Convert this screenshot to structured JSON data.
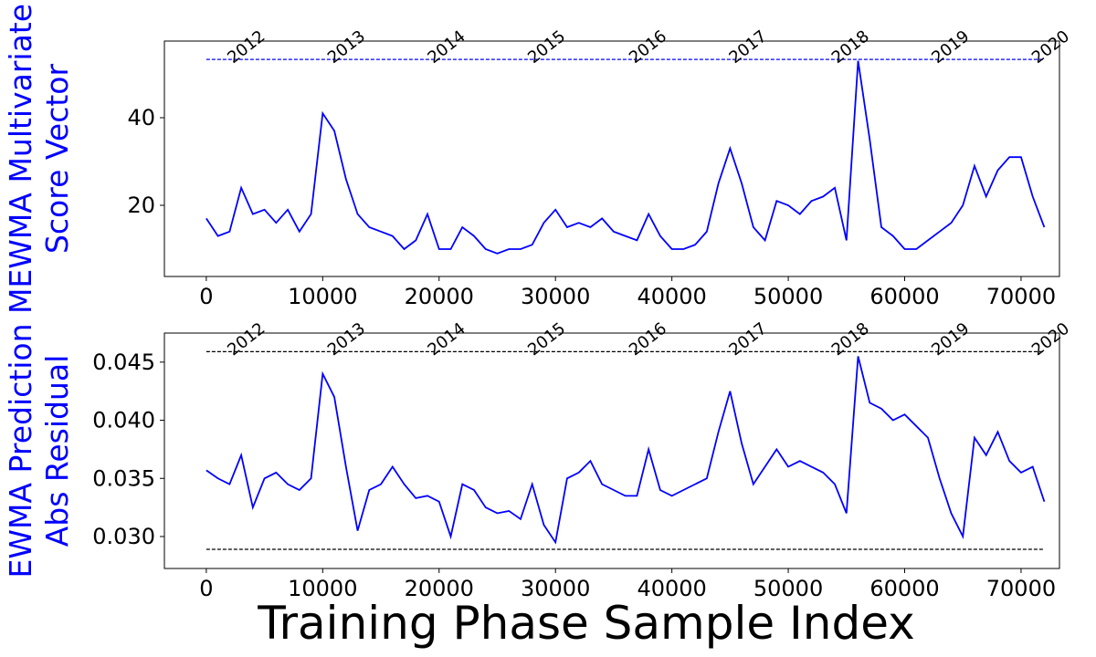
{
  "chart_data": [
    {
      "type": "line",
      "ylabel": [
        "MEWMA Multivariate",
        "Score Vector"
      ],
      "ylabel_color": "#0000ff",
      "xlim": [
        -3600,
        73300
      ],
      "ylim": [
        3.75,
        57.5
      ],
      "xticks": [
        0,
        10000,
        20000,
        30000,
        40000,
        50000,
        60000,
        70000
      ],
      "yticks": [
        20,
        40
      ],
      "hlines": [
        {
          "value": 53.3,
          "color": "#0000ff"
        }
      ],
      "annotations": [
        {
          "text": "2012",
          "x": 2300
        },
        {
          "text": "2013",
          "x": 10900
        },
        {
          "text": "2014",
          "x": 19500
        },
        {
          "text": "2015",
          "x": 28100
        },
        {
          "text": "2016",
          "x": 36800
        },
        {
          "text": "2017",
          "x": 45400
        },
        {
          "text": "2018",
          "x": 54200
        },
        {
          "text": "2019",
          "x": 62800
        },
        {
          "text": "2020",
          "x": 71400
        }
      ],
      "x": [
        0,
        1000,
        2000,
        3000,
        4000,
        5000,
        6000,
        7000,
        8000,
        9000,
        10000,
        11000,
        12000,
        13000,
        14000,
        15000,
        16000,
        17000,
        18000,
        19000,
        20000,
        21000,
        22000,
        23000,
        24000,
        25000,
        26000,
        27000,
        28000,
        29000,
        30000,
        31000,
        32000,
        33000,
        34000,
        35000,
        36000,
        37000,
        38000,
        39000,
        40000,
        41000,
        42000,
        43000,
        44000,
        45000,
        46000,
        47000,
        48000,
        49000,
        50000,
        51000,
        52000,
        53000,
        54000,
        55000,
        56000,
        57000,
        58000,
        59000,
        60000,
        61000,
        62000,
        63000,
        64000,
        65000,
        66000,
        67000,
        68000,
        69000,
        70000,
        71000,
        72000
      ],
      "series": [
        {
          "color": "#0000ff",
          "values": [
            17,
            13,
            14,
            24,
            18,
            19,
            16,
            19,
            14,
            18,
            41,
            37,
            26,
            18,
            15,
            14,
            13,
            10,
            12,
            18,
            10,
            10,
            15,
            13,
            10,
            9,
            10,
            10,
            11,
            16,
            19,
            15,
            16,
            15,
            17,
            14,
            13,
            12,
            18,
            13,
            10,
            10,
            11,
            14,
            25,
            33,
            25,
            15,
            12,
            21,
            20,
            18,
            21,
            22,
            24,
            12,
            53,
            35,
            15,
            13,
            10,
            10,
            12,
            14,
            16,
            20,
            29,
            22,
            28,
            31,
            31,
            22,
            15
          ]
        }
      ]
    },
    {
      "type": "line",
      "ylabel": [
        "EWMA Prediction",
        "Abs Residual"
      ],
      "ylabel_color": "#0000ff",
      "xlabel": "Training Phase Sample Index",
      "xlim": [
        -3600,
        73300
      ],
      "ylim": [
        0.02725,
        0.0475
      ],
      "xticks": [
        0,
        10000,
        20000,
        30000,
        40000,
        50000,
        60000,
        70000
      ],
      "yticks": [
        {
          "value": 0.03,
          "label": "0.030"
        },
        0.035,
        {
          "value": 0.04,
          "label": "0.040"
        },
        0.045
      ],
      "hlines": [
        {
          "value": 0.0459,
          "color": "#000000"
        },
        {
          "value": 0.0289,
          "color": "#000000"
        }
      ],
      "annotations": [
        {
          "text": "2012",
          "x": 2300
        },
        {
          "text": "2013",
          "x": 10900
        },
        {
          "text": "2014",
          "x": 19500
        },
        {
          "text": "2015",
          "x": 28100
        },
        {
          "text": "2016",
          "x": 36800
        },
        {
          "text": "2017",
          "x": 45400
        },
        {
          "text": "2018",
          "x": 54200
        },
        {
          "text": "2019",
          "x": 62800
        },
        {
          "text": "2020",
          "x": 71400
        }
      ],
      "x": [
        0,
        1000,
        2000,
        3000,
        4000,
        5000,
        6000,
        7000,
        8000,
        9000,
        10000,
        11000,
        12000,
        13000,
        14000,
        15000,
        16000,
        17000,
        18000,
        19000,
        20000,
        21000,
        22000,
        23000,
        24000,
        25000,
        26000,
        27000,
        28000,
        29000,
        30000,
        31000,
        32000,
        33000,
        34000,
        35000,
        36000,
        37000,
        38000,
        39000,
        40000,
        41000,
        42000,
        43000,
        44000,
        45000,
        46000,
        47000,
        48000,
        49000,
        50000,
        51000,
        52000,
        53000,
        54000,
        55000,
        56000,
        57000,
        58000,
        59000,
        60000,
        61000,
        62000,
        63000,
        64000,
        65000,
        66000,
        67000,
        68000,
        69000,
        70000,
        71000,
        72000
      ],
      "series": [
        {
          "color": "#0000ff",
          "values": [
            0.0357,
            0.035,
            0.0345,
            0.037,
            0.0325,
            0.035,
            0.0355,
            0.0345,
            0.034,
            0.035,
            0.044,
            0.042,
            0.036,
            0.0305,
            0.034,
            0.0345,
            0.036,
            0.0345,
            0.0333,
            0.0335,
            0.033,
            0.03,
            0.0345,
            0.034,
            0.0325,
            0.032,
            0.0322,
            0.0315,
            0.0345,
            0.031,
            0.0295,
            0.035,
            0.0355,
            0.0365,
            0.0345,
            0.034,
            0.0335,
            0.0335,
            0.0375,
            0.034,
            0.0335,
            0.034,
            0.0345,
            0.035,
            0.039,
            0.0425,
            0.038,
            0.0345,
            0.036,
            0.0375,
            0.036,
            0.0365,
            0.036,
            0.0355,
            0.0345,
            0.032,
            0.0455,
            0.0415,
            0.041,
            0.04,
            0.0405,
            0.0395,
            0.0385,
            0.035,
            0.032,
            0.03,
            0.0385,
            0.037,
            0.039,
            0.0365,
            0.0355,
            0.036,
            0.033
          ]
        }
      ]
    }
  ]
}
